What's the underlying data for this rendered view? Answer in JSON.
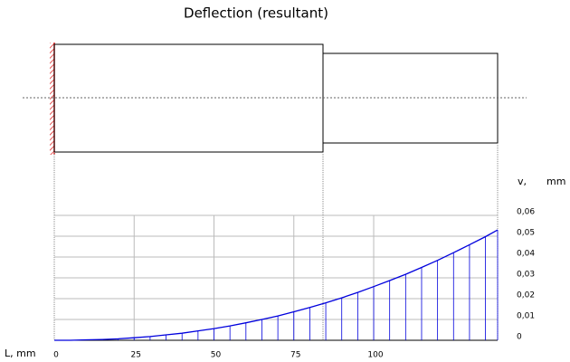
{
  "chart_data": {
    "type": "deflection",
    "title": "Deflection (resultant)",
    "x_label": "L, mm",
    "y_label": "v,",
    "y_unit": "mm",
    "x": [
      0,
      5,
      10,
      15,
      20,
      25,
      30,
      35,
      40,
      45,
      50,
      55,
      60,
      65,
      70,
      75,
      80,
      85,
      90,
      95,
      100,
      105,
      110,
      115,
      120,
      125,
      130,
      135,
      138.8
    ],
    "values": [
      0,
      0,
      0.0002,
      0.0004,
      0.0007,
      0.0012,
      0.0018,
      0.0026,
      0.0034,
      0.0045,
      0.0056,
      0.0069,
      0.0084,
      0.01,
      0.0117,
      0.0137,
      0.0158,
      0.018,
      0.0204,
      0.023,
      0.0258,
      0.0287,
      0.0317,
      0.035,
      0.0384,
      0.0421,
      0.0459,
      0.0498,
      0.053
    ],
    "color": "#0000dd",
    "xlim": [
      0,
      138.8
    ],
    "xticks": [
      0,
      25,
      50,
      75,
      100
    ],
    "ylim": [
      0,
      0.06
    ],
    "yticks": [
      0,
      {
        "value": 0.01,
        "label": "0,01"
      },
      {
        "value": 0.02,
        "label": "0,02"
      },
      {
        "value": 0.03,
        "label": "0,03"
      },
      {
        "value": 0.04,
        "label": "0,04"
      },
      {
        "value": 0.05,
        "label": "0,05"
      },
      {
        "value": 0.06,
        "label": "0,06"
      }
    ],
    "grid": true
  }
}
